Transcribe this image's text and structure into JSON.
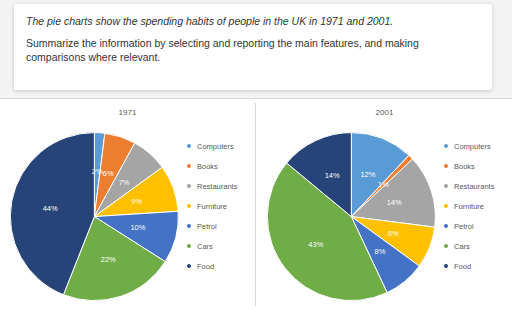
{
  "prompt": {
    "caption": "The pie charts show the spending habits of people in the UK in 1971 and 2001.",
    "task": "Summarize the information by selecting and reporting the main features, and making comparisons where relevant."
  },
  "chart_data": [
    {
      "type": "pie",
      "title": "1971",
      "categories": [
        "Computers",
        "Books",
        "Restaurants",
        "Furniture",
        "Petrol",
        "Cars",
        "Food"
      ],
      "values": [
        2,
        6,
        7,
        9,
        10,
        22,
        44
      ],
      "value_labels": [
        "2%",
        "6%",
        "7%",
        "9%",
        "10%",
        "22%",
        "44%"
      ],
      "colors": [
        "#5b9bd5",
        "#ed7d31",
        "#a5a5a5",
        "#ffc000",
        "#4472c4",
        "#70ad47",
        "#264478"
      ],
      "data_labels": true,
      "legend": "right"
    },
    {
      "type": "pie",
      "title": "2001",
      "categories": [
        "Computers",
        "Books",
        "Restaurants",
        "Furniture",
        "Petrol",
        "Cars",
        "Food"
      ],
      "values": [
        12,
        1,
        14,
        8,
        8,
        43,
        14
      ],
      "value_labels": [
        "12%",
        "1%",
        "14%",
        "8%",
        "8%",
        "43%",
        "14%"
      ],
      "colors": [
        "#5b9bd5",
        "#ed7d31",
        "#a5a5a5",
        "#ffc000",
        "#4472c4",
        "#70ad47",
        "#264478"
      ],
      "data_labels": true,
      "legend": "right"
    }
  ]
}
